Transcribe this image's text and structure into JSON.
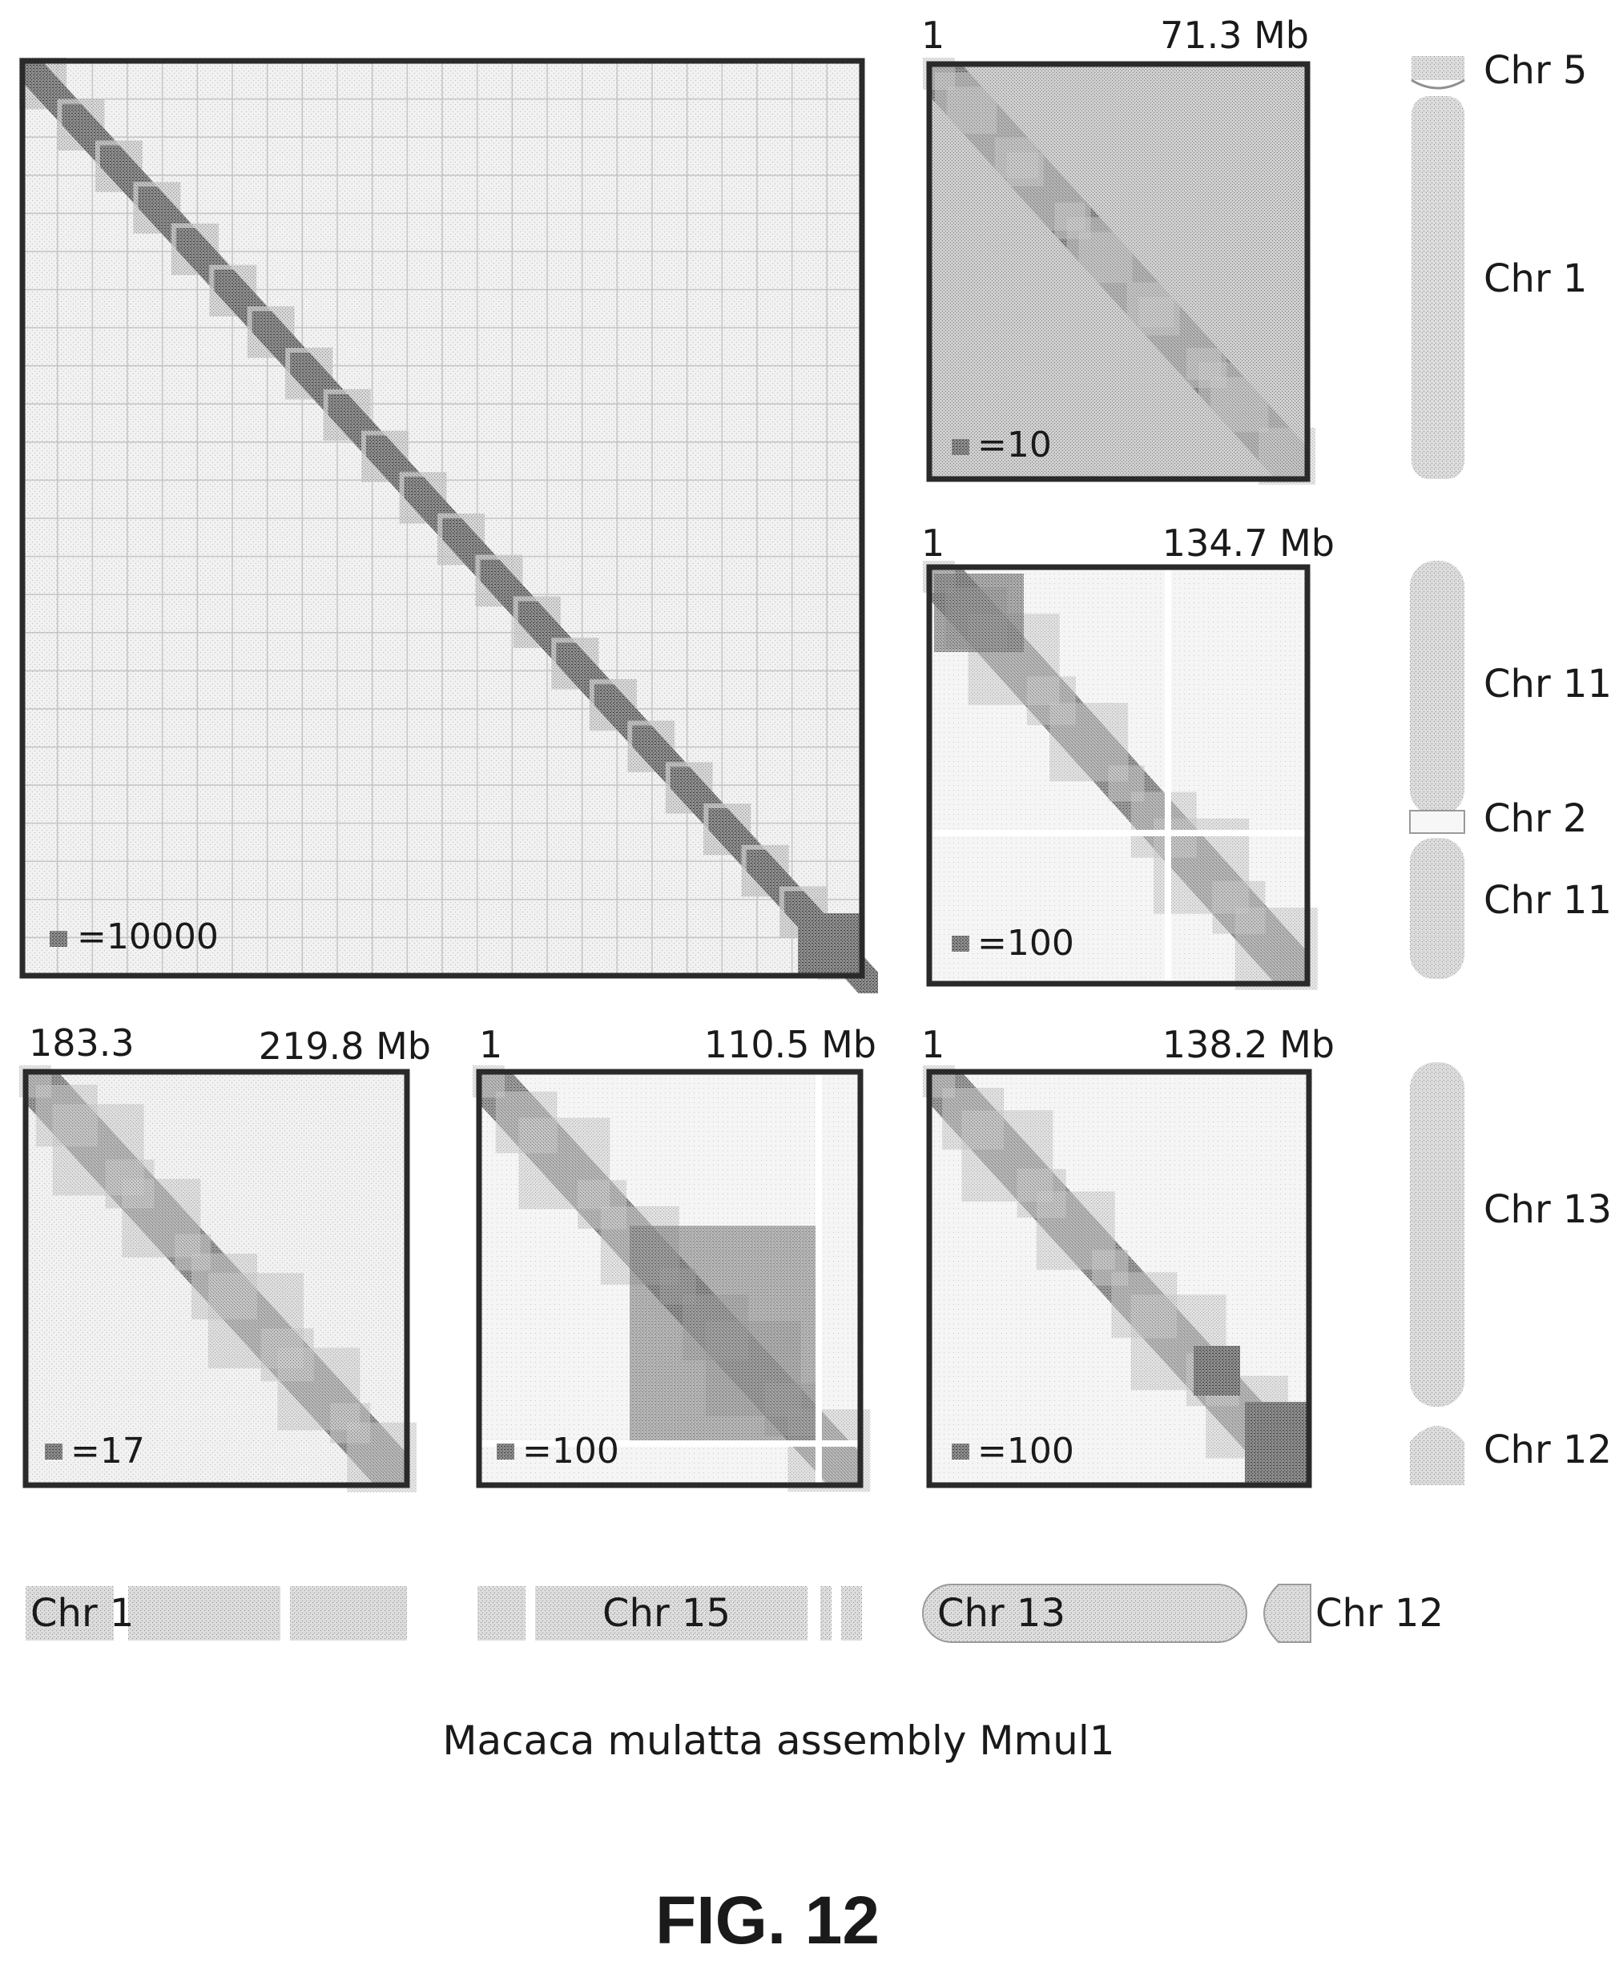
{
  "main_map": {
    "scale_label": "=10000"
  },
  "panels": {
    "chr5_1": {
      "start": "1",
      "end": "71.3 Mb",
      "scale_label": "=10"
    },
    "chr11_2": {
      "start": "1",
      "end": "134.7 Mb",
      "scale_label": "=100"
    },
    "chr1_region": {
      "start": "183.3",
      "end": "219.8 Mb",
      "scale_label": "=17"
    },
    "chr15": {
      "start": "1",
      "end": "110.5 Mb",
      "scale_label": "=100"
    },
    "chr13_12": {
      "start": "1",
      "end": "138.2 Mb",
      "scale_label": "=100"
    }
  },
  "chromosome_labels": {
    "right_top": [
      "Chr 5",
      "Chr 1"
    ],
    "right_middle": [
      "Chr 11",
      "Chr 2",
      "Chr 11"
    ],
    "right_bottom": [
      "Chr 13",
      "Chr 12"
    ],
    "bottom_row": [
      "Chr 1",
      "Chr 15",
      "Chr 13",
      "Chr 12"
    ]
  },
  "caption": "Macaca mulatta assembly Mmul1",
  "figure_label": "FIG. 12"
}
